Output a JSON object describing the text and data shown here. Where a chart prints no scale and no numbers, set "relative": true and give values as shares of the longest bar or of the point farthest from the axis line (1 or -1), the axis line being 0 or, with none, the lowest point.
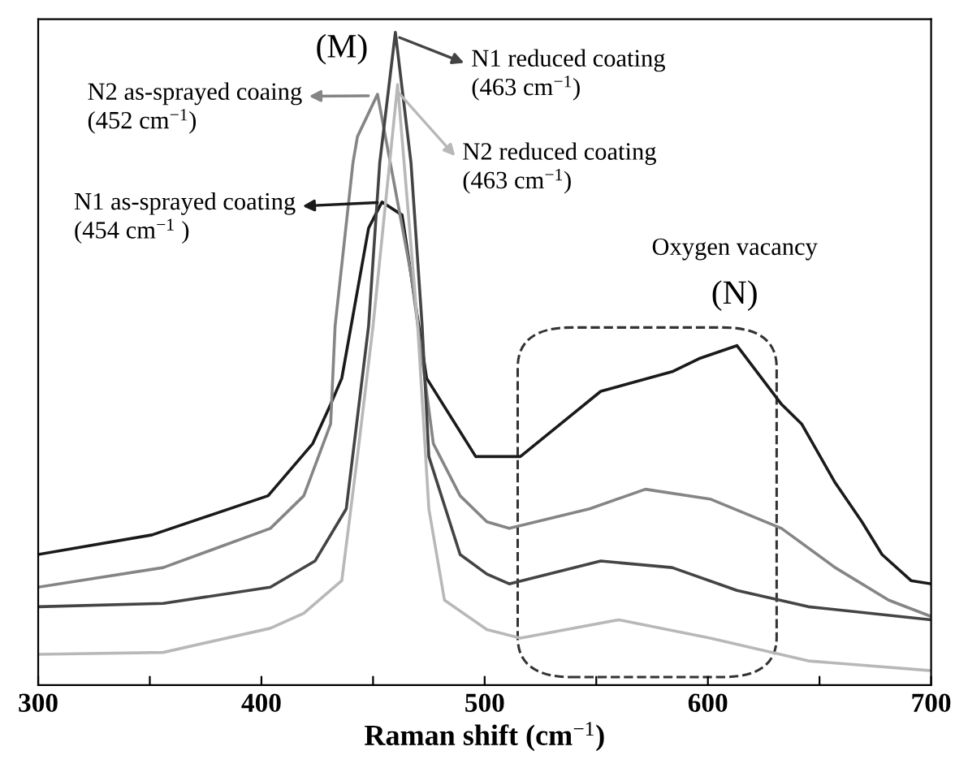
{
  "chart_data": {
    "type": "line",
    "relative": true,
    "xlabel": "Raman shift (cm$^{−1}$)",
    "xlim": [
      300,
      700
    ],
    "xticks": [
      300,
      {
        "value": 350,
        "label": null
      },
      400,
      {
        "value": 450,
        "label": null
      },
      500,
      {
        "value": 550,
        "label": null
      },
      600,
      {
        "value": 650,
        "label": null
      },
      700
    ],
    "grid": false,
    "legend": false,
    "marker": "none",
    "line_style": "solid",
    "series": [
      {
        "color": "#1a1a1a",
        "x": [
          300,
          351,
          403,
          423,
          431,
          436,
          448,
          454,
          463,
          474,
          496,
          516,
          552,
          584,
          596,
          613,
          633,
          642,
          657,
          669,
          678,
          691,
          700
        ],
        "values": [
          0.2,
          0.23,
          0.29,
          0.37,
          0.43,
          0.47,
          0.7,
          0.74,
          0.72,
          0.47,
          0.35,
          0.35,
          0.45,
          0.48,
          0.5,
          0.52,
          0.43,
          0.4,
          0.31,
          0.25,
          0.2,
          0.16,
          0.155
        ]
      },
      {
        "color": "#858585",
        "x": [
          300,
          356,
          404,
          419,
          431,
          433,
          441,
          443,
          452,
          467,
          477,
          489,
          501,
          511,
          547,
          572,
          601,
          633,
          657,
          681,
          700
        ],
        "values": [
          0.15,
          0.18,
          0.24,
          0.29,
          0.4,
          0.55,
          0.8,
          0.84,
          0.905,
          0.63,
          0.37,
          0.29,
          0.25,
          0.24,
          0.27,
          0.3,
          0.285,
          0.24,
          0.18,
          0.13,
          0.105
        ]
      },
      {
        "color": "#444444",
        "x": [
          300,
          356,
          404,
          424,
          438,
          448,
          453,
          460,
          467,
          472,
          475,
          489,
          501,
          511,
          552,
          584,
          613,
          645,
          700
        ],
        "values": [
          0.12,
          0.125,
          0.15,
          0.19,
          0.27,
          0.55,
          0.8,
          1.0,
          0.8,
          0.55,
          0.35,
          0.2,
          0.17,
          0.155,
          0.19,
          0.18,
          0.145,
          0.12,
          0.1
        ]
      },
      {
        "color": "#b8b8b8",
        "x": [
          300,
          356,
          404,
          419,
          436,
          443,
          450,
          461,
          470,
          475,
          482,
          501,
          516,
          560,
          601,
          645,
          700
        ],
        "values": [
          0.047,
          0.05,
          0.087,
          0.11,
          0.16,
          0.35,
          0.55,
          0.92,
          0.55,
          0.27,
          0.13,
          0.085,
          0.072,
          0.1,
          0.072,
          0.037,
          0.022
        ]
      }
    ],
    "annotations": [
      "N2 as-sprayed coaing\n(452 cm$^{−1}$)",
      "N1 as-sprayed coating\n(454 cm$^{−1}$ )",
      "N1 reduced coating\n(463 cm$^{−1}$)",
      "N2 reduced coating\n(463 cm$^{−1}$)",
      "(M)",
      "Oxygen vacancy",
      "(N)"
    ]
  }
}
